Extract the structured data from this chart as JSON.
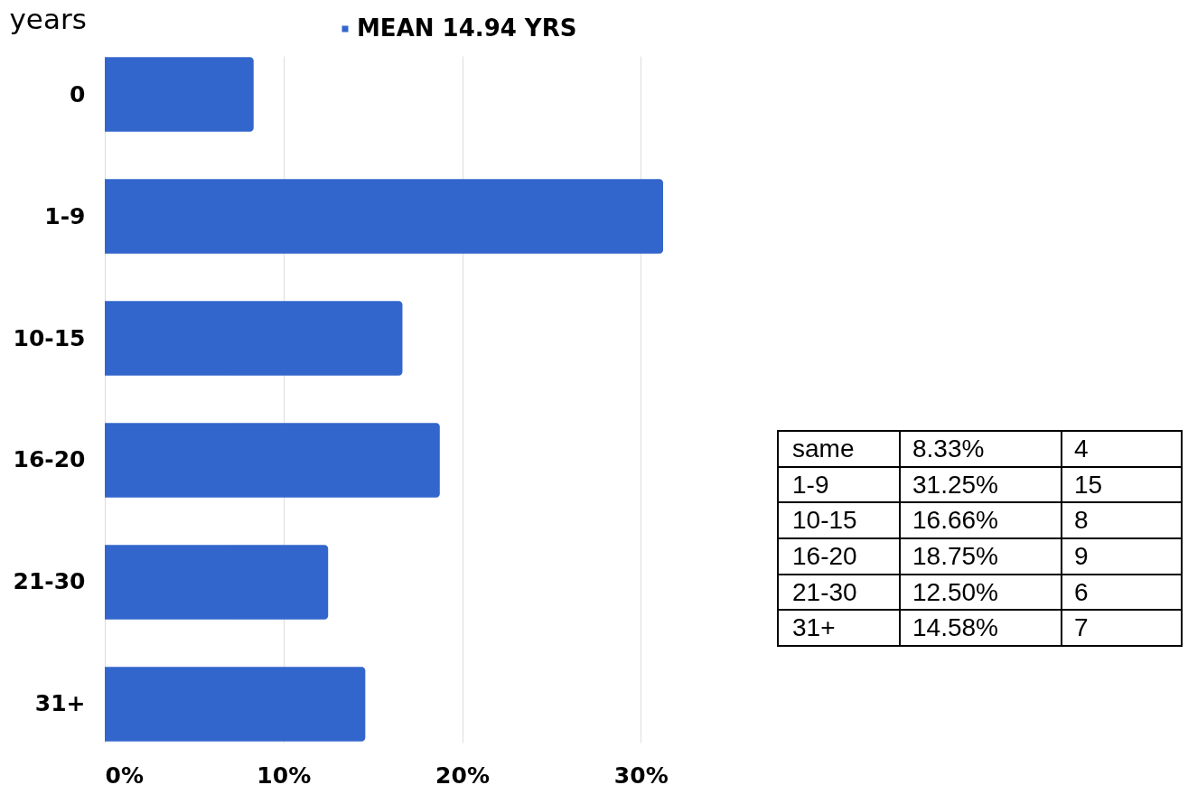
{
  "chart_data": [
    {
      "type": "bar",
      "orientation": "horizontal",
      "ylabel": "years",
      "categories": [
        "0",
        "1-9",
        "10-15",
        "16-20",
        "21-30",
        "31+"
      ],
      "series": [
        {
          "name": "MEAN 14.94 YRS",
          "color": "#3366cc",
          "values": [
            8.33,
            31.25,
            16.66,
            18.75,
            12.5,
            14.58
          ]
        }
      ],
      "xlim": [
        0,
        31.25
      ],
      "xticks": [
        {
          "value": 0,
          "label": "0%"
        },
        {
          "value": 10,
          "label": "10%"
        },
        {
          "value": 20,
          "label": "20%"
        },
        {
          "value": 30,
          "label": "30%"
        }
      ],
      "grid": "x",
      "legend": "top"
    },
    {
      "type": "other",
      "y_categories": [
        "same",
        "1-9",
        "10-15",
        "16-20",
        "21-30",
        "31+"
      ],
      "cell_labels": [
        [
          "8.33%",
          "4"
        ],
        [
          "31.25%",
          "15"
        ],
        [
          "16.66%",
          "8"
        ],
        [
          "18.75%",
          "9"
        ],
        [
          "12.50%",
          "6"
        ],
        [
          "14.58%",
          "7"
        ]
      ]
    }
  ]
}
